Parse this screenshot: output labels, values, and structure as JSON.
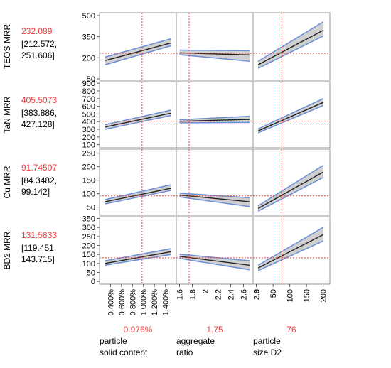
{
  "chart_data": {
    "type": "line",
    "factors": [
      {
        "name_lines": [
          "particle",
          "solid content"
        ],
        "current_label": "0.976%",
        "current": 0.976,
        "range": [
          0.2,
          1.6
        ],
        "ticks": [
          "0.400%",
          "0.600%",
          "0.800%",
          "1.000%",
          "1.200%",
          "1.400%"
        ],
        "tick_values": [
          0.4,
          0.6,
          0.8,
          1.0,
          1.2,
          1.4
        ],
        "trace_x": [
          0.3,
          1.5
        ]
      },
      {
        "name_lines": [
          "aggregate",
          "ratio"
        ],
        "current_label": "1.75",
        "current": 1.75,
        "range": [
          1.55,
          2.75
        ],
        "ticks": [
          "1.6",
          "1.8",
          "2",
          "2.2",
          "2.4",
          "2.6",
          "2.8"
        ],
        "tick_values": [
          1.6,
          1.8,
          2.0,
          2.2,
          2.4,
          2.6,
          2.8
        ],
        "trace_x": [
          1.6,
          2.7
        ]
      },
      {
        "name_lines": [
          "particle",
          "size D2"
        ],
        "current_label": "76",
        "current": 76,
        "range": [
          -10,
          220
        ],
        "ticks": [
          "0",
          "50",
          "100",
          "150",
          "200"
        ],
        "tick_values": [
          0,
          50,
          100,
          150,
          200
        ],
        "trace_x": [
          5,
          200
        ]
      }
    ],
    "responses": [
      {
        "name": "TEOS MRR",
        "value_label": "232.089",
        "ci_lines": [
          "[212.572,",
          "251.606]"
        ],
        "current": 232.089,
        "range": [
          40,
          520
        ],
        "ticks": [
          "50",
          "200",
          "350",
          "500"
        ],
        "tick_values": [
          50,
          200,
          350,
          500
        ],
        "traces": [
          {
            "y": [
              180,
              305
            ],
            "lo": [
              150,
              285
            ],
            "hi": [
              205,
              335
            ]
          },
          {
            "y": [
              235,
              220
            ],
            "lo": [
              222,
              175
            ],
            "hi": [
              255,
              250
            ]
          },
          {
            "y": [
              150,
              395
            ],
            "lo": [
              125,
              355
            ],
            "hi": [
              175,
              455
            ]
          }
        ]
      },
      {
        "name": "TaN MRR",
        "value_label": "405.5073",
        "ci_lines": [
          "[383.886,",
          "427.128]"
        ],
        "current": 405.5073,
        "range": [
          60,
          920
        ],
        "ticks": [
          "100",
          "200",
          "300",
          "400",
          "500",
          "600",
          "700",
          "800",
          "900"
        ],
        "tick_values": [
          100,
          200,
          300,
          400,
          500,
          600,
          700,
          800,
          900
        ],
        "traces": [
          {
            "y": [
              330,
              510
            ],
            "lo": [
              300,
              480
            ],
            "hi": [
              360,
              550
            ]
          },
          {
            "y": [
              405,
              430
            ],
            "lo": [
              385,
              390
            ],
            "hi": [
              425,
              470
            ]
          },
          {
            "y": [
              280,
              650
            ],
            "lo": [
              255,
              610
            ],
            "hi": [
              305,
              700
            ]
          }
        ]
      },
      {
        "name": "Cu MRR",
        "value_label": "91.74507",
        "ci_lines": [
          "[84.3482,",
          "99.142]"
        ],
        "current": 91.74507,
        "range": [
          20,
          265
        ],
        "ticks": [
          "50",
          "100",
          "150",
          "200",
          "250"
        ],
        "tick_values": [
          50,
          100,
          150,
          200,
          250
        ],
        "traces": [
          {
            "y": [
              70,
              120
            ],
            "lo": [
              62,
              112
            ],
            "hi": [
              78,
              133
            ]
          },
          {
            "y": [
              95,
              70
            ],
            "lo": [
              88,
              52
            ],
            "hi": [
              102,
              85
            ]
          },
          {
            "y": [
              45,
              180
            ],
            "lo": [
              35,
              160
            ],
            "hi": [
              55,
              205
            ]
          }
        ]
      },
      {
        "name": "BD2 MRR",
        "value_label": "131.5833",
        "ci_lines": [
          "[119.451,",
          "143.715]"
        ],
        "current": 131.5833,
        "range": [
          -15,
          360
        ],
        "ticks": [
          "0",
          "50",
          "100",
          "150",
          "200",
          "250",
          "300",
          "350"
        ],
        "tick_values": [
          0,
          50,
          100,
          150,
          200,
          250,
          300,
          350
        ],
        "traces": [
          {
            "y": [
              100,
              165
            ],
            "lo": [
              90,
              150
            ],
            "hi": [
              115,
              182
            ]
          },
          {
            "y": [
              140,
              90
            ],
            "lo": [
              128,
              65
            ],
            "hi": [
              152,
              115
            ]
          },
          {
            "y": [
              75,
              260
            ],
            "lo": [
              60,
              225
            ],
            "hi": [
              90,
              300
            ]
          }
        ]
      }
    ]
  },
  "colors": {
    "current_value": "#e8403c",
    "guide_line": "#e8403c",
    "ci_band_fill": "#c8c8c8",
    "ci_band_edge": "#6b8ed6",
    "trace": "#222222",
    "frame": "#9a9a9a",
    "text": "#000000"
  }
}
